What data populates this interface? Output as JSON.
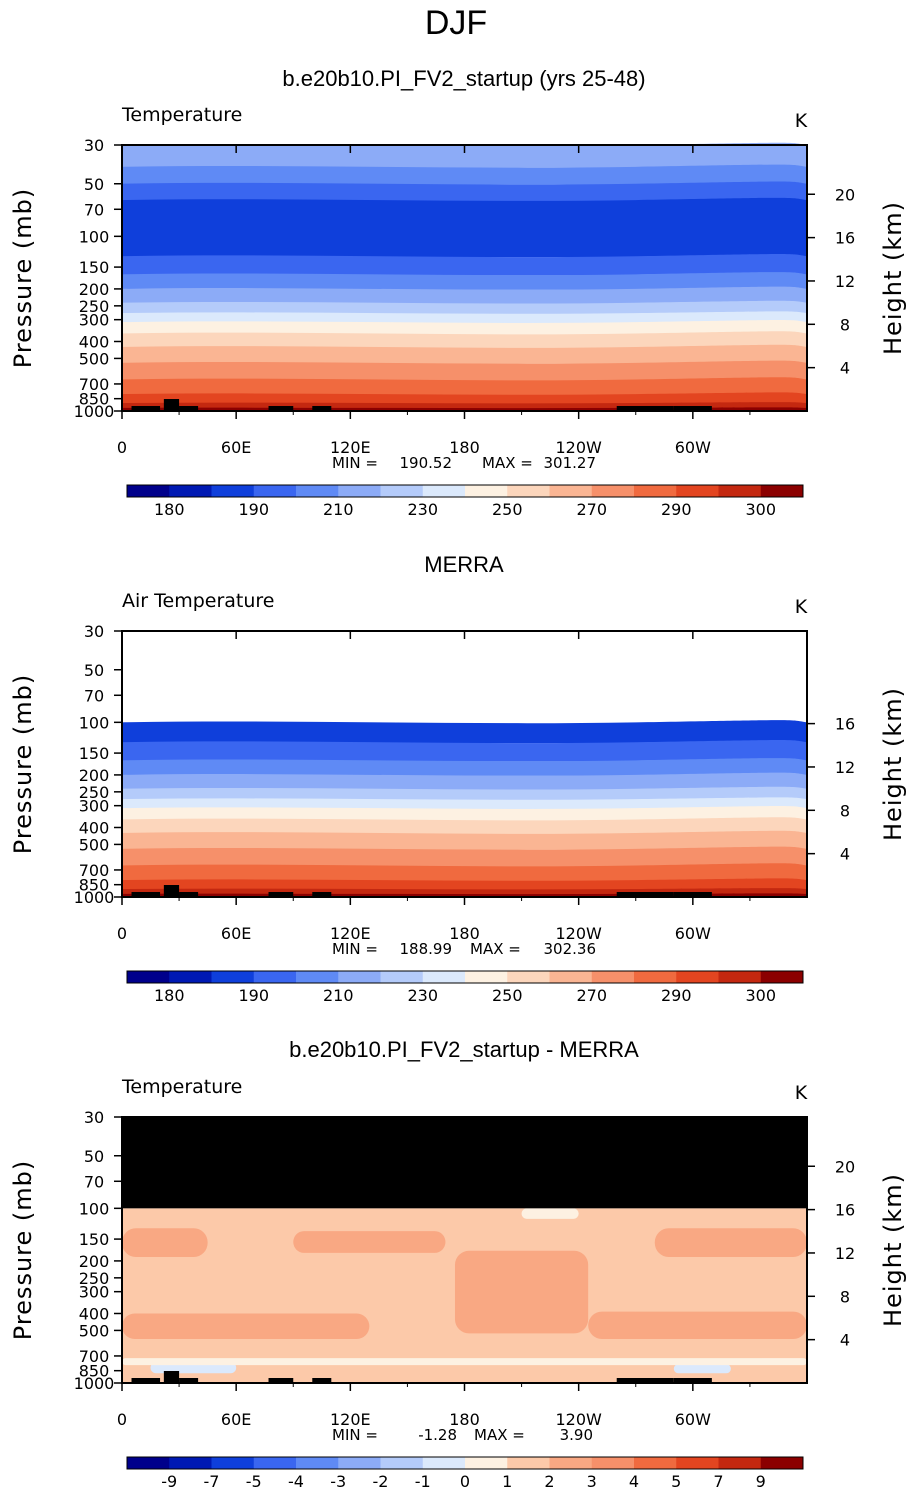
{
  "suptitle": "DJF",
  "palette": [
    "#00008b",
    "#0019b3",
    "#0f3fdb",
    "#3a66f0",
    "#5f8af5",
    "#8cabf7",
    "#b4cbfa",
    "#dbe9fc",
    "#fdf1e2",
    "#fcd6bc",
    "#fab593",
    "#f6906a",
    "#f06a3f",
    "#e34520",
    "#c42810",
    "#8b0000"
  ],
  "chart_data": [
    {
      "type": "heatmap",
      "title": "b.e20b10.PI_FV2_startup (yrs 25-48)",
      "left_label": "Temperature",
      "units": "K",
      "ylabel": "Pressure (mb)",
      "ylabel_right": "Height (km)",
      "yticks": [
        "30",
        "50",
        "70",
        "100",
        "150",
        "200",
        "250",
        "300",
        "400",
        "500",
        "700",
        "850",
        "1000"
      ],
      "yticks_right": [
        "20",
        "16",
        "12",
        "8",
        "4"
      ],
      "xticks": [
        "0",
        "60E",
        "120E",
        "180",
        "120W",
        "60W"
      ],
      "stats": {
        "min_label": "MIN =",
        "min": "190.52",
        "max_label": "MAX =",
        "max": "301.27"
      },
      "colorbar_ticks": [
        "180",
        "190",
        "210",
        "230",
        "250",
        "270",
        "290",
        "300"
      ],
      "levels": [
        180,
        190,
        210,
        230,
        250,
        270,
        290,
        300
      ],
      "profile": [
        {
          "p": 30,
          "bin": 5
        },
        {
          "p": 40,
          "bin": 4
        },
        {
          "p": 50,
          "bin": 3
        },
        {
          "p": 62,
          "bin": 2
        },
        {
          "p": 130,
          "bin": 3
        },
        {
          "p": 165,
          "bin": 4
        },
        {
          "p": 200,
          "bin": 5
        },
        {
          "p": 240,
          "bin": 6
        },
        {
          "p": 275,
          "bin": 7
        },
        {
          "p": 310,
          "bin": 8
        },
        {
          "p": 360,
          "bin": 9
        },
        {
          "p": 430,
          "bin": 10
        },
        {
          "p": 530,
          "bin": 11
        },
        {
          "p": 660,
          "bin": 12
        },
        {
          "p": 800,
          "bin": 13
        },
        {
          "p": 900,
          "bin": 14
        },
        {
          "p": 960,
          "bin": 15
        }
      ]
    },
    {
      "type": "heatmap",
      "title": "MERRA",
      "left_label": "Air Temperature",
      "units": "K",
      "ylabel": "Pressure (mb)",
      "ylabel_right": "Height (km)",
      "yticks": [
        "30",
        "50",
        "70",
        "100",
        "150",
        "200",
        "250",
        "300",
        "400",
        "500",
        "700",
        "850",
        "1000"
      ],
      "yticks_right": [
        "16",
        "12",
        "8",
        "4"
      ],
      "xticks": [
        "0",
        "60E",
        "120E",
        "180",
        "120W",
        "60W"
      ],
      "stats": {
        "min_label": "MIN =",
        "min": "188.99",
        "max_label": "MAX =",
        "max": "302.36"
      },
      "colorbar_ticks": [
        "180",
        "190",
        "210",
        "230",
        "250",
        "270",
        "290",
        "300"
      ],
      "levels": [
        180,
        190,
        210,
        230,
        250,
        270,
        290,
        300
      ],
      "data_top_p": 100,
      "profile": [
        {
          "p": 100,
          "bin": 2
        },
        {
          "p": 130,
          "bin": 3
        },
        {
          "p": 165,
          "bin": 4
        },
        {
          "p": 200,
          "bin": 5
        },
        {
          "p": 240,
          "bin": 6
        },
        {
          "p": 275,
          "bin": 7
        },
        {
          "p": 310,
          "bin": 8
        },
        {
          "p": 360,
          "bin": 9
        },
        {
          "p": 430,
          "bin": 10
        },
        {
          "p": 530,
          "bin": 11
        },
        {
          "p": 660,
          "bin": 12
        },
        {
          "p": 800,
          "bin": 13
        },
        {
          "p": 900,
          "bin": 14
        },
        {
          "p": 960,
          "bin": 15
        }
      ]
    },
    {
      "type": "heatmap",
      "title": "b.e20b10.PI_FV2_startup - MERRA",
      "left_label": "Temperature",
      "units": "K",
      "ylabel": "Pressure (mb)",
      "ylabel_right": "Height (km)",
      "yticks": [
        "30",
        "50",
        "70",
        "100",
        "150",
        "200",
        "250",
        "300",
        "400",
        "500",
        "700",
        "850",
        "1000"
      ],
      "yticks_right": [
        "20",
        "16",
        "12",
        "8",
        "4"
      ],
      "xticks": [
        "0",
        "60E",
        "120E",
        "180",
        "120W",
        "60W"
      ],
      "stats": {
        "min_label": "MIN =",
        "min": "-1.28",
        "max_label": "MAX =",
        "max": "3.90"
      },
      "colorbar_ticks": [
        "-9",
        "-7",
        "-5",
        "-4",
        "-3",
        "-2",
        "-1",
        "0",
        "1",
        "2",
        "3",
        "4",
        "5",
        "7",
        "9"
      ],
      "levels": [
        -9,
        -7,
        -5,
        -4,
        -3,
        -2,
        -1,
        0,
        1,
        2,
        3,
        4,
        5,
        7,
        9
      ],
      "masked_above_p": 100,
      "base_bin": 9,
      "blobs": [
        {
          "lon": 0,
          "lon2": 45,
          "p": 130,
          "p2": 190,
          "bin": 10
        },
        {
          "lon": 90,
          "lon2": 170,
          "p": 135,
          "p2": 180,
          "bin": 10
        },
        {
          "lon": 175,
          "lon2": 245,
          "p": 175,
          "p2": 520,
          "bin": 10
        },
        {
          "lon": 0,
          "lon2": 130,
          "p": 400,
          "p2": 560,
          "bin": 10
        },
        {
          "lon": 245,
          "lon2": 360,
          "p": 390,
          "p2": 560,
          "bin": 10
        },
        {
          "lon": 280,
          "lon2": 360,
          "p": 130,
          "p2": 190,
          "bin": 10
        },
        {
          "lon": 210,
          "lon2": 240,
          "p": 100,
          "p2": 115,
          "bin": 8
        },
        {
          "lon": 15,
          "lon2": 60,
          "p": 760,
          "p2": 880,
          "bin": 7
        },
        {
          "lon": 290,
          "lon2": 320,
          "p": 780,
          "p2": 880,
          "bin": 7
        },
        {
          "lon": 0,
          "lon2": 360,
          "p": 720,
          "p2": 790,
          "bin": 8
        }
      ]
    }
  ]
}
